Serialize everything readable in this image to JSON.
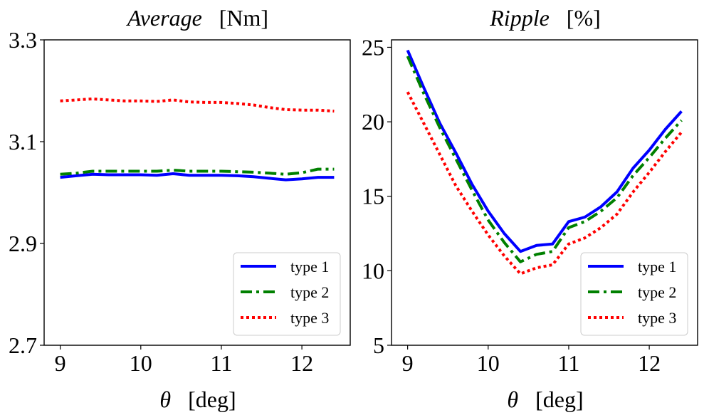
{
  "chart_data": [
    {
      "type": "line",
      "title": "Average",
      "title_unit": "[Nm]",
      "xlabel": "θ",
      "xlabel_unit": "[deg]",
      "xlim": [
        8.8,
        12.6
      ],
      "ylim": [
        2.7,
        3.3
      ],
      "xticks": [
        9,
        10,
        11,
        12
      ],
      "xtick_labels": [
        "9",
        "10",
        "11",
        "12"
      ],
      "yticks": [
        2.7,
        2.9,
        3.1,
        3.3
      ],
      "ytick_labels": [
        "2.7",
        "2.9",
        "3.1",
        "3.3"
      ],
      "legend_position": "lower-right",
      "grid": false,
      "x": [
        9.0,
        9.2,
        9.4,
        9.6,
        9.8,
        10.0,
        10.2,
        10.4,
        10.6,
        10.8,
        11.0,
        11.2,
        11.4,
        11.6,
        11.8,
        12.0,
        12.2,
        12.4
      ],
      "series": [
        {
          "name": "type 1",
          "color": "#0000ff",
          "dash": "solid",
          "values": [
            3.03,
            3.033,
            3.036,
            3.035,
            3.035,
            3.035,
            3.034,
            3.037,
            3.034,
            3.034,
            3.034,
            3.033,
            3.031,
            3.028,
            3.025,
            3.027,
            3.03,
            3.03
          ]
        },
        {
          "name": "type 2",
          "color": "#008000",
          "dash": "dashdot",
          "values": [
            3.036,
            3.038,
            3.042,
            3.042,
            3.042,
            3.042,
            3.042,
            3.044,
            3.042,
            3.042,
            3.042,
            3.041,
            3.04,
            3.038,
            3.036,
            3.039,
            3.046,
            3.046
          ]
        },
        {
          "name": "type 3",
          "color": "#ff0000",
          "dash": "dotted",
          "values": [
            3.18,
            3.182,
            3.184,
            3.182,
            3.18,
            3.18,
            3.179,
            3.182,
            3.178,
            3.177,
            3.177,
            3.175,
            3.172,
            3.167,
            3.163,
            3.162,
            3.162,
            3.16
          ]
        }
      ]
    },
    {
      "type": "line",
      "title": "Ripple",
      "title_unit": "[%]",
      "xlabel": "θ",
      "xlabel_unit": "[deg]",
      "xlim": [
        8.8,
        12.6
      ],
      "ylim": [
        5,
        25.5
      ],
      "xticks": [
        9,
        10,
        11,
        12
      ],
      "xtick_labels": [
        "9",
        "10",
        "11",
        "12"
      ],
      "yticks": [
        5,
        10,
        15,
        20,
        25
      ],
      "ytick_labels": [
        "5",
        "10",
        "15",
        "20",
        "25"
      ],
      "legend_position": "lower-right",
      "grid": false,
      "x": [
        9.0,
        9.2,
        9.4,
        9.6,
        9.8,
        10.0,
        10.2,
        10.4,
        10.6,
        10.8,
        11.0,
        11.2,
        11.4,
        11.6,
        11.8,
        12.0,
        12.2,
        12.4
      ],
      "series": [
        {
          "name": "type 1",
          "color": "#0000ff",
          "dash": "solid",
          "values": [
            24.8,
            22.3,
            19.9,
            17.9,
            15.8,
            14.0,
            12.5,
            11.3,
            11.7,
            11.8,
            13.3,
            13.6,
            14.3,
            15.3,
            16.9,
            18.1,
            19.5,
            20.7
          ]
        },
        {
          "name": "type 2",
          "color": "#008000",
          "dash": "dashdot",
          "values": [
            24.4,
            21.9,
            19.6,
            17.5,
            15.4,
            13.4,
            11.9,
            10.6,
            11.1,
            11.3,
            12.9,
            13.3,
            14.0,
            14.9,
            16.4,
            17.6,
            18.9,
            20.1
          ]
        },
        {
          "name": "type 3",
          "color": "#ff0000",
          "dash": "dotted",
          "values": [
            22.0,
            19.9,
            17.8,
            15.7,
            14.0,
            12.4,
            11.0,
            9.8,
            10.2,
            10.4,
            11.8,
            12.2,
            12.9,
            13.8,
            15.3,
            16.6,
            18.0,
            19.3
          ]
        }
      ]
    }
  ]
}
